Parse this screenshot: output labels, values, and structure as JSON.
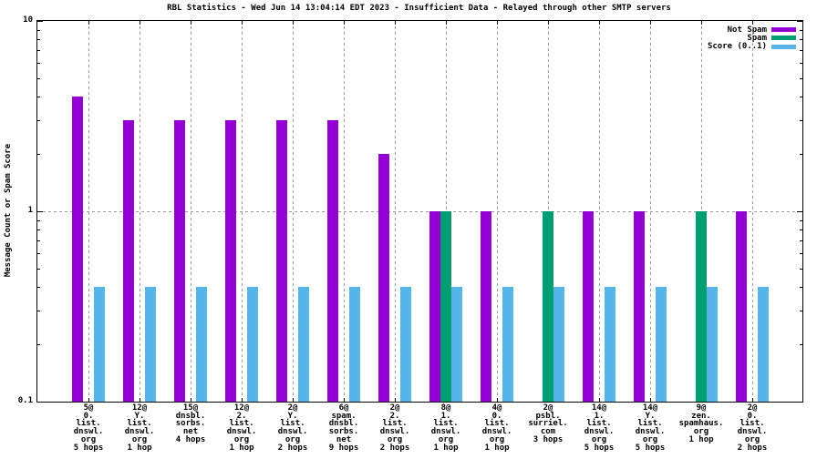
{
  "page": {
    "background": "#ffffff"
  },
  "chart_data": {
    "type": "bar",
    "title": "RBL Statistics - Wed Jun 14 13:04:14 EDT 2023 - Insufficient Data - Relayed through other SMTP servers",
    "xlabel": "",
    "ylabel": "Message Count or Spam Score",
    "yscale": "log",
    "ylim": [
      0.1,
      10
    ],
    "grid": true,
    "legend_position": "top-right-inside",
    "grid_color": "#9a9a9a",
    "frame_color": "#000000",
    "yticks": [
      {
        "label": "10",
        "value": 10
      },
      {
        "label": "1",
        "value": 1
      },
      {
        "label": "0.1",
        "value": 0.1
      }
    ],
    "categories": [
      [
        "5@",
        "0.",
        "list.",
        "dnswl.",
        "org",
        "5 hops"
      ],
      [
        "12@",
        "Y.",
        "list.",
        "dnswl.",
        "org",
        "1 hop"
      ],
      [
        "15@",
        "dnsbl.",
        "sorbs.",
        "net",
        "4 hops"
      ],
      [
        "12@",
        "2.",
        "list.",
        "dnswl.",
        "org",
        "1 hop"
      ],
      [
        "2@",
        "Y.",
        "list.",
        "dnswl.",
        "org",
        "2 hops"
      ],
      [
        "6@",
        "spam.",
        "dnsbl.",
        "sorbs.",
        "net",
        "9 hops"
      ],
      [
        "2@",
        "2.",
        "list.",
        "dnswl.",
        "org",
        "2 hops"
      ],
      [
        "8@",
        "1.",
        "list.",
        "dnswl.",
        "org",
        "1 hop"
      ],
      [
        "4@",
        "0.",
        "list.",
        "dnswl.",
        "org",
        "1 hop"
      ],
      [
        "2@",
        "psbl.",
        "surriel.",
        "com",
        "3 hops"
      ],
      [
        "14@",
        "1.",
        "list.",
        "dnswl.",
        "org",
        "5 hops"
      ],
      [
        "14@",
        "Y.",
        "list.",
        "dnswl.",
        "org",
        "5 hops"
      ],
      [
        "9@",
        "zen.",
        "spamhaus.",
        "org",
        "1 hop"
      ],
      [
        "2@",
        "0.",
        "list.",
        "dnswl.",
        "org",
        "2 hops"
      ]
    ],
    "series": [
      {
        "name": "Not Spam",
        "color": "#9400d3",
        "values": [
          4,
          3,
          3,
          3,
          3,
          3,
          2,
          1,
          1,
          null,
          1,
          1,
          null,
          1
        ]
      },
      {
        "name": "Spam",
        "color": "#009e73",
        "values": [
          null,
          null,
          null,
          null,
          null,
          null,
          null,
          1,
          null,
          1,
          null,
          null,
          1,
          null
        ]
      },
      {
        "name": "Score (0..1)",
        "color": "#56b4e9",
        "values": [
          0.4,
          0.4,
          0.4,
          0.4,
          0.4,
          0.4,
          0.4,
          0.4,
          0.4,
          0.4,
          0.4,
          0.4,
          0.4,
          0.4
        ]
      }
    ]
  }
}
